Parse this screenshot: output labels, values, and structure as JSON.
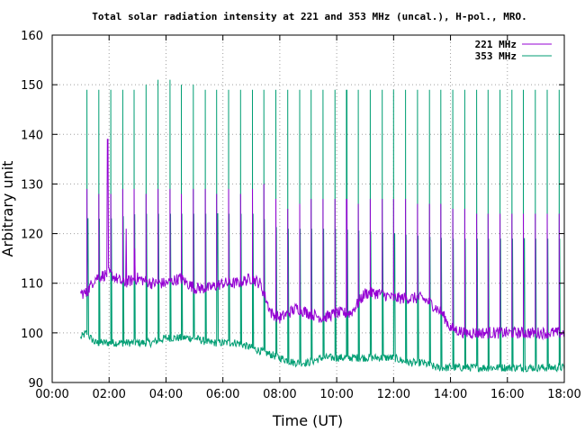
{
  "chart_data": {
    "type": "line",
    "title": "Total solar radiation intensity at 221 and 353 MHz (uncal.), H-pol., MRO.",
    "xlabel": "Time (UT)",
    "ylabel": "Arbitrary unit",
    "xlim": [
      0,
      18
    ],
    "ylim": [
      90,
      160
    ],
    "x_ticks": [
      "00:00",
      "02:00",
      "04:00",
      "06:00",
      "08:00",
      "10:00",
      "12:00",
      "14:00",
      "16:00",
      "18:00"
    ],
    "y_ticks": [
      "90",
      "100",
      "110",
      "120",
      "130",
      "140",
      "150",
      "160"
    ],
    "grid": true,
    "legend_position": "top-right",
    "series": [
      {
        "name": "221 MHz",
        "color": "#9400d3",
        "baseline_hours": [
          1.0,
          1.2,
          1.5,
          2.0,
          2.5,
          3.0,
          3.5,
          4.0,
          4.5,
          5.0,
          5.5,
          6.0,
          6.5,
          7.0,
          7.3,
          7.7,
          8.0,
          8.3,
          8.6,
          9.0,
          9.5,
          10.0,
          10.5,
          11.0,
          11.5,
          12.0,
          12.5,
          13.0,
          13.3,
          13.7,
          14.0,
          14.5,
          15.0,
          16.0,
          17.0,
          18.0
        ],
        "baseline_values": [
          108,
          108,
          111,
          112,
          110,
          111,
          110,
          110,
          111,
          109,
          109,
          110,
          110,
          111,
          110,
          104,
          103,
          104,
          105,
          104,
          103,
          104,
          104,
          108,
          108,
          107,
          107,
          107,
          106,
          104,
          101,
          100,
          100,
          100,
          100,
          100
        ],
        "calibration_peak_values": [
          129,
          128,
          128,
          129,
          129,
          128,
          129,
          129,
          128,
          129,
          129,
          128,
          129,
          128,
          129,
          130,
          127,
          125,
          126,
          127,
          127,
          127,
          127,
          126,
          127,
          127,
          127,
          127,
          126,
          126,
          126,
          125,
          125,
          124,
          124,
          124,
          124,
          124,
          124,
          124,
          124
        ],
        "burst_hours": [
          1.95,
          2.6,
          2.9
        ],
        "burst_values": [
          139,
          121,
          117
        ]
      },
      {
        "name": "353 MHz",
        "color": "#009e73",
        "baseline_hours": [
          1.0,
          1.2,
          1.5,
          2.0,
          2.5,
          3.0,
          3.5,
          4.0,
          4.5,
          5.0,
          5.5,
          6.0,
          6.5,
          7.0,
          7.5,
          8.0,
          8.5,
          9.0,
          9.5,
          10.0,
          10.5,
          11.0,
          11.5,
          12.0,
          12.5,
          13.0,
          13.5,
          14.0,
          15.0,
          16.0,
          17.0,
          18.0
        ],
        "baseline_values": [
          99,
          100,
          98,
          98,
          98,
          98,
          98,
          99,
          99,
          99,
          98,
          98,
          98,
          97,
          96,
          95,
          94,
          94,
          95,
          95,
          95,
          95,
          95,
          95,
          94,
          94,
          93,
          93,
          93,
          93,
          93,
          93
        ],
        "calibration_peak_values": [
          149,
          149,
          149,
          149,
          149,
          150,
          151,
          151,
          150,
          150,
          149,
          149,
          149,
          149,
          149,
          149,
          149,
          149,
          149,
          149,
          149,
          149,
          149,
          149,
          149,
          149,
          149,
          149,
          149,
          149,
          149,
          149,
          149,
          149,
          149,
          149,
          149,
          149,
          149,
          149,
          149
        ],
        "plateau_hours": [
          1.0,
          2.0,
          3.0,
          4.0,
          5.0,
          6.0,
          7.0,
          7.3,
          7.6,
          8.0,
          10.0,
          12.0,
          14.0,
          16.0,
          18.0
        ],
        "plateau_values": [
          123,
          123,
          124,
          124,
          124,
          124,
          124,
          124,
          122,
          121,
          121,
          120,
          119,
          119,
          119
        ]
      }
    ],
    "calibration_pulse_count": 41
  }
}
